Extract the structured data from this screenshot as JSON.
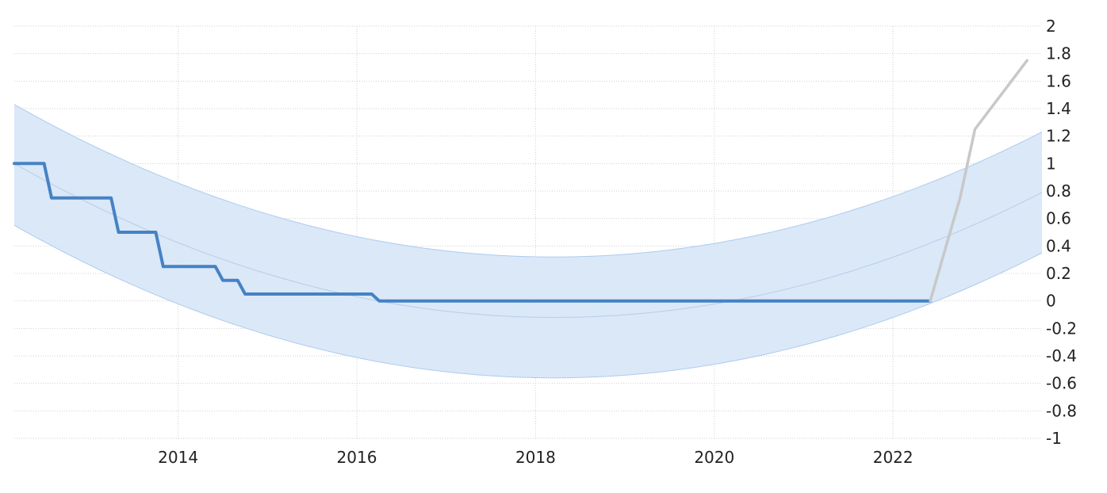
{
  "chart_data": {
    "type": "line",
    "x_tick_labels": [
      "2014",
      "2016",
      "2018",
      "2020",
      "2022"
    ],
    "y_tick_labels": [
      "2",
      "1.8",
      "1.6",
      "1.4",
      "1.2",
      "1",
      "0.8",
      "0.6",
      "0.4",
      "0.2",
      "0",
      "-0.2",
      "-0.4",
      "-0.6",
      "-0.8",
      "-1"
    ],
    "ylim": [
      -1,
      2
    ],
    "xlim": [
      "2012-03",
      "2023-09"
    ],
    "grid": true,
    "legend": "none",
    "y_axis_side": "right",
    "colors": {
      "actual": "#4682c4",
      "forecast": "#c8c8c8",
      "band_fill": "#d6e5f7",
      "band_edge": "#aecbee",
      "trend": "#b9cde6"
    },
    "series": [
      {
        "x": [
          "2012-03",
          "2012-07",
          "2012-08",
          "2013-04",
          "2013-05",
          "2013-10",
          "2013-11",
          "2014-06",
          "2014-07",
          "2014-09",
          "2014-10",
          "2016-03",
          "2016-04",
          "2022-06"
        ],
        "values": [
          1.0,
          1.0,
          0.75,
          0.75,
          0.5,
          0.5,
          0.25,
          0.25,
          0.15,
          0.15,
          0.05,
          0.05,
          0.0,
          0.0
        ]
      },
      {
        "x": [
          "2022-06",
          "2022-10",
          "2022-12",
          "2023-07"
        ],
        "values": [
          0.0,
          0.75,
          1.25,
          1.75
        ]
      }
    ],
    "trend_band": {
      "center": {
        "x": [
          "2012-03",
          "2018-03",
          "2023-09"
        ],
        "values": [
          1.0,
          -0.12,
          0.79
        ]
      },
      "upper": {
        "x": [
          "2012-03",
          "2018-03",
          "2023-09"
        ],
        "values": [
          1.43,
          0.32,
          1.23
        ]
      },
      "lower": {
        "x": [
          "2012-03",
          "2018-03",
          "2023-09"
        ],
        "values": [
          0.55,
          -0.56,
          0.35
        ]
      }
    }
  }
}
